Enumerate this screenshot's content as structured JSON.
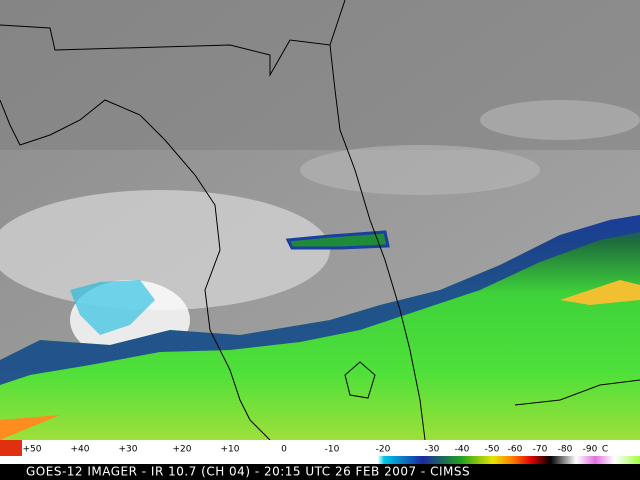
{
  "colorbar": {
    "labels": [
      "+50",
      "+40",
      "+30",
      "+20",
      "+10",
      "0",
      "-10",
      "-20",
      "-30",
      "-40",
      "-50",
      "-60",
      "-70",
      "-80",
      "-90",
      "C"
    ]
  },
  "footer": {
    "caption": "GOES-12 IMAGER - IR 10.7 (CH 04) - 20:15 UTC 26 FEB 2007 - CIMSS"
  }
}
